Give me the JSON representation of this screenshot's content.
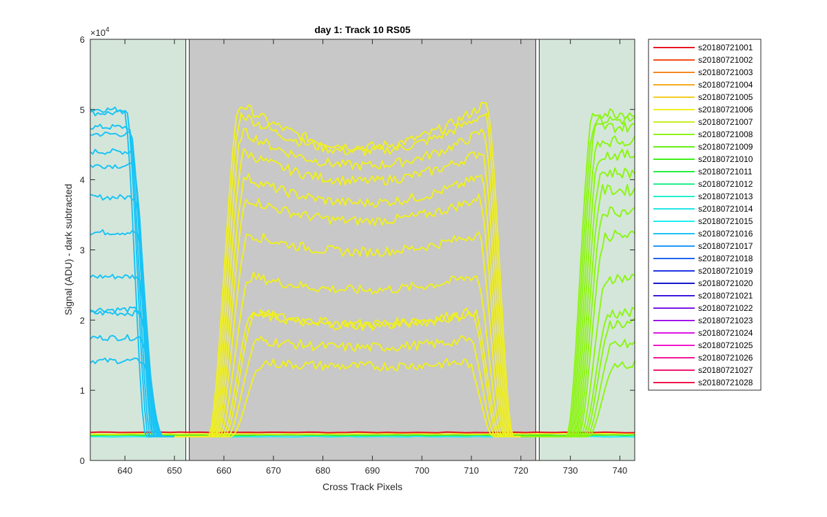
{
  "chart_data": {
    "type": "line",
    "title": "day 1: Track 10  RS05",
    "xlabel": "Cross Track Pixels",
    "ylabel": "Signal (ADU) - dark subtracted",
    "y_exponent_label": "×10",
    "y_exponent_power": "4",
    "xlim": [
      633,
      743
    ],
    "ylim": [
      0,
      6
    ],
    "x_ticks": [
      640,
      650,
      660,
      670,
      680,
      690,
      700,
      710,
      720,
      730,
      740
    ],
    "y_ticks": [
      0,
      1,
      2,
      3,
      4,
      5,
      6
    ],
    "grid": false,
    "legend_position": "outside-right",
    "background_regions": [
      {
        "x": [
          633,
          652.3
        ],
        "color": "#d4e6da"
      },
      {
        "x": [
          653.0,
          723.0
        ],
        "color": "#c8c8c8"
      },
      {
        "x": [
          723.7,
          743
        ],
        "color": "#d4e6da"
      }
    ],
    "vertical_lines": [
      652.3,
      653.0,
      723.0,
      723.7
    ],
    "baseline_level": 0.34,
    "left_group": {
      "color": "#19c3f5",
      "plateau_levels": [
        5.0,
        4.95,
        4.75,
        4.65,
        4.4,
        4.2,
        3.75,
        3.25,
        2.62,
        2.15,
        2.1,
        1.75,
        1.42
      ],
      "edge_x": [
        641.3,
        641.8,
        642.2,
        642.6,
        642.9,
        643.2,
        643.5,
        643.8,
        644.0,
        644.2,
        644.4,
        644.6,
        644.8
      ]
    },
    "middle_group": {
      "color": "#f0f01e",
      "plateau_levels": [
        5.05,
        4.92,
        4.68,
        4.4,
        4.05,
        3.75,
        3.25,
        2.65,
        2.15,
        2.12,
        1.75,
        1.42
      ],
      "center_dip": [
        0.58,
        0.52,
        0.48,
        0.42,
        0.38,
        0.34,
        0.28,
        0.22,
        0.2,
        0.2,
        0.14,
        0.08
      ],
      "rise_x": [
        656.8,
        657.1,
        657.4,
        657.7,
        658.0,
        658.3,
        658.6,
        659.0,
        659.5,
        660.0,
        660.6,
        661.4
      ],
      "fall_x": [
        718.5,
        718.2,
        717.9,
        717.6,
        717.3,
        717.0,
        716.7,
        716.3,
        715.9,
        715.5,
        715.0,
        714.5
      ]
    },
    "right_group": {
      "color": "#8cf514",
      "plateau_levels": [
        4.95,
        4.85,
        4.75,
        4.55,
        4.35,
        4.1,
        3.85,
        3.55,
        3.2,
        2.6,
        2.1,
        1.95,
        1.65,
        1.35
      ],
      "rise_x": [
        729.2,
        729.5,
        729.8,
        730.1,
        730.4,
        730.7,
        731.0,
        731.3,
        731.6,
        732.0,
        732.4,
        732.8,
        733.2,
        733.6
      ]
    },
    "series": [
      {
        "name": "s20180721001",
        "color": "#e6141e"
      },
      {
        "name": "s20180721002",
        "color": "#f04b14"
      },
      {
        "name": "s20180721003",
        "color": "#f5871e"
      },
      {
        "name": "s20180721004",
        "color": "#f5aa1e"
      },
      {
        "name": "s20180721005",
        "color": "#f5cd1e"
      },
      {
        "name": "s20180721006",
        "color": "#f0f01e"
      },
      {
        "name": "s20180721007",
        "color": "#c8f01e"
      },
      {
        "name": "s20180721008",
        "color": "#8cf514"
      },
      {
        "name": "s20180721009",
        "color": "#64f014"
      },
      {
        "name": "s20180721010",
        "color": "#3cf014"
      },
      {
        "name": "s20180721011",
        "color": "#1ef03c"
      },
      {
        "name": "s20180721012",
        "color": "#1ef08c"
      },
      {
        "name": "s20180721013",
        "color": "#1ef0c8"
      },
      {
        "name": "s20180721014",
        "color": "#1ee6e6"
      },
      {
        "name": "s20180721015",
        "color": "#1ef0f0"
      },
      {
        "name": "s20180721016",
        "color": "#19c3f5"
      },
      {
        "name": "s20180721017",
        "color": "#1e96f5"
      },
      {
        "name": "s20180721018",
        "color": "#1e64f0"
      },
      {
        "name": "s20180721019",
        "color": "#1e32e6"
      },
      {
        "name": "s20180721020",
        "color": "#1414c8"
      },
      {
        "name": "s20180721021",
        "color": "#3c14dc"
      },
      {
        "name": "s20180721022",
        "color": "#7814e6"
      },
      {
        "name": "s20180721023",
        "color": "#a014e6"
      },
      {
        "name": "s20180721024",
        "color": "#dc14e6"
      },
      {
        "name": "s20180721025",
        "color": "#f014c8"
      },
      {
        "name": "s20180721026",
        "color": "#f01496"
      },
      {
        "name": "s20180721027",
        "color": "#f0146e"
      },
      {
        "name": "s20180721028",
        "color": "#f01446"
      }
    ]
  }
}
